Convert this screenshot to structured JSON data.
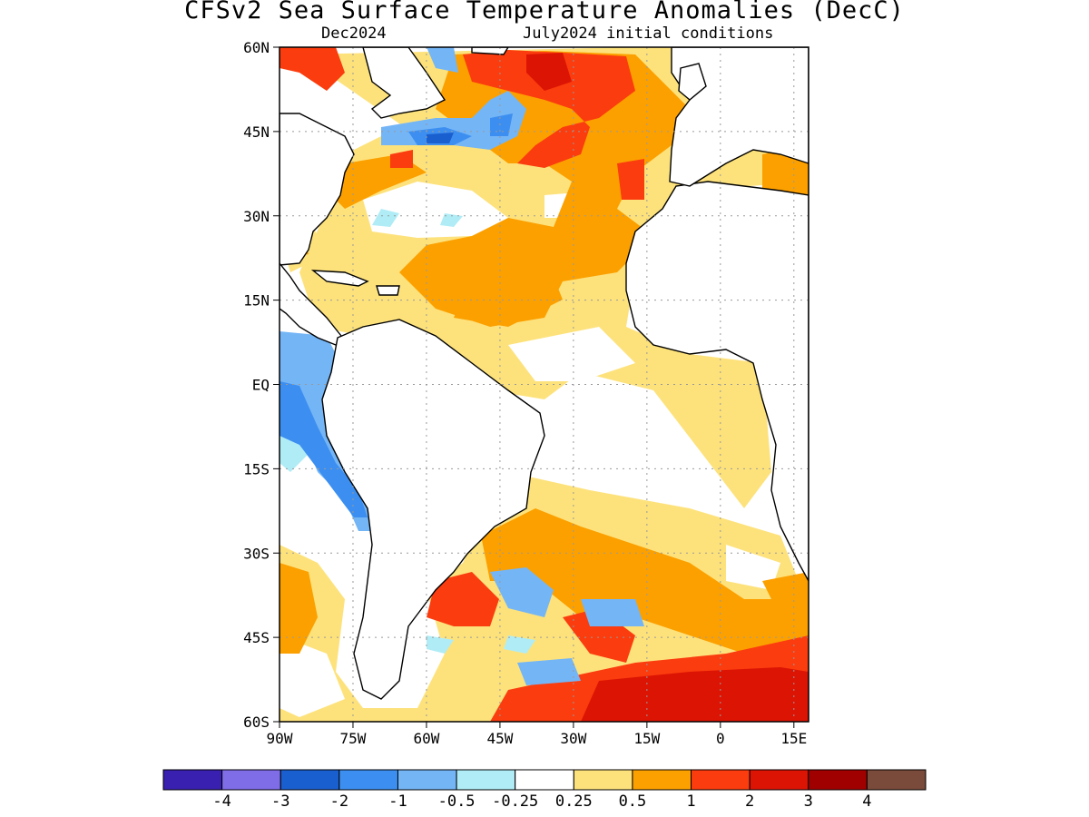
{
  "title": "CFSv2 Sea Surface Temperature Anomalies (DecC)",
  "subtitle_left": "Dec2024",
  "subtitle_right": "July2024 initial conditions",
  "map": {
    "region": "Atlantic Ocean",
    "lat_labels": [
      "60N",
      "45N",
      "30N",
      "15N",
      "EQ",
      "15S",
      "30S",
      "45S",
      "60S"
    ],
    "lat_values": [
      60,
      45,
      30,
      15,
      0,
      -15,
      -30,
      -45,
      -60
    ],
    "lon_labels": [
      "90W",
      "75W",
      "60W",
      "45W",
      "30W",
      "15W",
      "0",
      "15E"
    ],
    "lon_values": [
      -90,
      -75,
      -60,
      -45,
      -30,
      -15,
      0,
      15
    ],
    "lon_range": [
      -90,
      18
    ],
    "lat_range": [
      -60,
      60
    ],
    "grid": "dotted"
  },
  "colorbar": {
    "colors": [
      "#3a20b0",
      "#7f6de8",
      "#1a5fd0",
      "#3c8ff0",
      "#74b5f6",
      "#b0ecf6",
      "#ffffff",
      "#fde27c",
      "#fca000",
      "#fb3c0e",
      "#dc1404",
      "#a00000",
      "#7a4a3a"
    ],
    "labels": [
      "-4",
      "-3",
      "-2",
      "-1",
      "-0.5",
      "-0.25",
      "0.25",
      "0.5",
      "1",
      "2",
      "3",
      "4"
    ]
  }
}
